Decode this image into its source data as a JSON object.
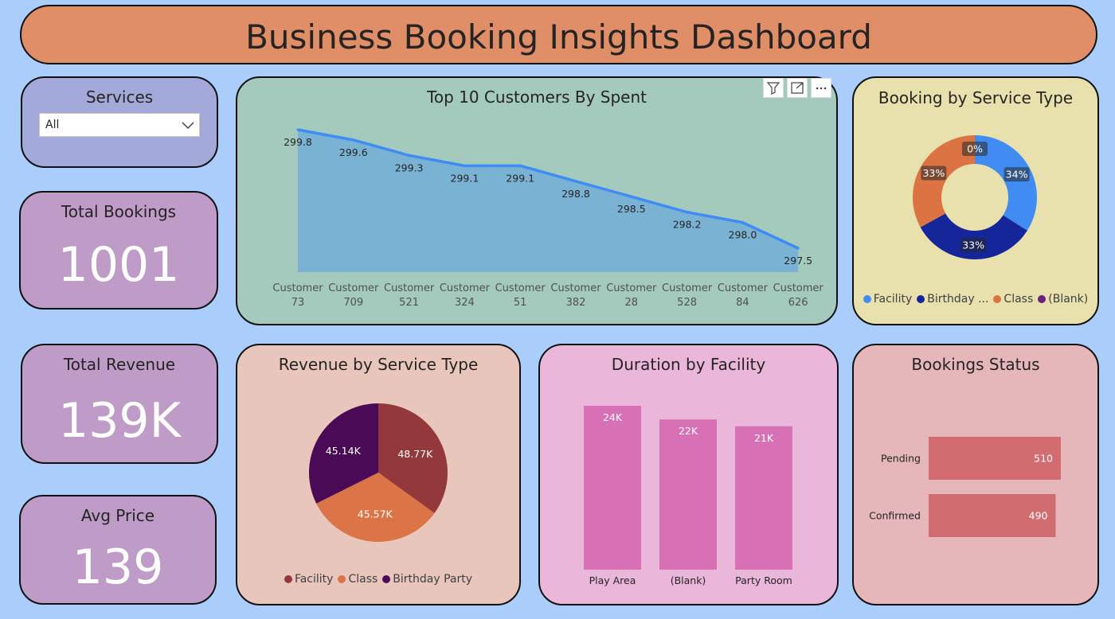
{
  "header": {
    "title": "Business Booking Insights Dashboard"
  },
  "slicer": {
    "title": "Services",
    "selected": "All"
  },
  "kpis": {
    "total_bookings": {
      "title": "Total Bookings",
      "value": "1001"
    },
    "total_revenue": {
      "title": "Total Revenue",
      "value": "139K"
    },
    "avg_price": {
      "title": "Avg Price",
      "value": "139"
    }
  },
  "visual_header": {
    "icons": [
      "filter-icon",
      "focus-mode-icon",
      "more-options-icon"
    ]
  },
  "colors": {
    "background": "#aacdfb",
    "header": "#e08e68",
    "slicer_card": "#a3a9d8",
    "kpi_card": "#bf9bc8",
    "line_card": "#a3cabc",
    "donut_card": "#e9e1ad",
    "pie_card": "#e8c6bb",
    "bar_card": "#eab6da",
    "status_card": "#e5b6ba",
    "line": "#3f8cf5",
    "area": "#7ab2d3",
    "donut_facility": "#418cf2",
    "donut_birthday": "#15259a",
    "donut_class": "#dc7342",
    "donut_blank": "#6b1f7f",
    "pie_facility": "#93393c",
    "pie_class": "#db7447",
    "pie_birthday": "#4a0a55",
    "duration_bar": "#d870b6",
    "status_bar": "#d16d71"
  },
  "chart_data": [
    {
      "type": "area",
      "title": "Top 10 Customers By Spent",
      "categories": [
        "Customer 73",
        "Customer 709",
        "Customer 521",
        "Customer 324",
        "Customer 51",
        "Customer 382",
        "Customer 28",
        "Customer 528",
        "Customer 84",
        "Customer 626"
      ],
      "category_lines": [
        [
          "Customer",
          "73"
        ],
        [
          "Customer",
          "709"
        ],
        [
          "Customer",
          "521"
        ],
        [
          "Customer",
          "324"
        ],
        [
          "Customer",
          "51"
        ],
        [
          "Customer",
          "382"
        ],
        [
          "Customer",
          "28"
        ],
        [
          "Customer",
          "528"
        ],
        [
          "Customer",
          "84"
        ],
        [
          "Customer",
          "626"
        ]
      ],
      "values": [
        299.8,
        299.6,
        299.3,
        299.1,
        299.1,
        298.8,
        298.5,
        298.2,
        298.0,
        297.5
      ],
      "data_labels": [
        "299.8",
        "299.6",
        "299.3",
        "299.1",
        "299.1",
        "298.8",
        "298.5",
        "298.2",
        "298.0",
        "297.5"
      ]
    },
    {
      "type": "pie",
      "subtype": "donut",
      "title": "Booking by Service Type",
      "categories": [
        "Facility",
        "Birthday ...",
        "Class",
        "(Blank)"
      ],
      "values": [
        34,
        33,
        33,
        0
      ],
      "data_labels": [
        "34%",
        "33%",
        "33%",
        "0%"
      ]
    },
    {
      "type": "pie",
      "title": "Revenue by Service Type",
      "categories": [
        "Facility",
        "Class",
        "Birthday Party"
      ],
      "values": [
        48.77,
        45.57,
        45.14
      ],
      "data_labels": [
        "48.77K",
        "45.57K",
        "45.14K"
      ]
    },
    {
      "type": "bar",
      "title": "Duration by Facility",
      "categories": [
        "Play Area",
        "(Blank)",
        "Party Room"
      ],
      "values": [
        24,
        22,
        21
      ],
      "data_labels": [
        "24K",
        "22K",
        "21K"
      ]
    },
    {
      "type": "bar",
      "orientation": "horizontal",
      "title": "Bookings Status",
      "categories": [
        "Pending",
        "Confirmed"
      ],
      "values": [
        510,
        490
      ],
      "data_labels": [
        "510",
        "490"
      ]
    }
  ]
}
